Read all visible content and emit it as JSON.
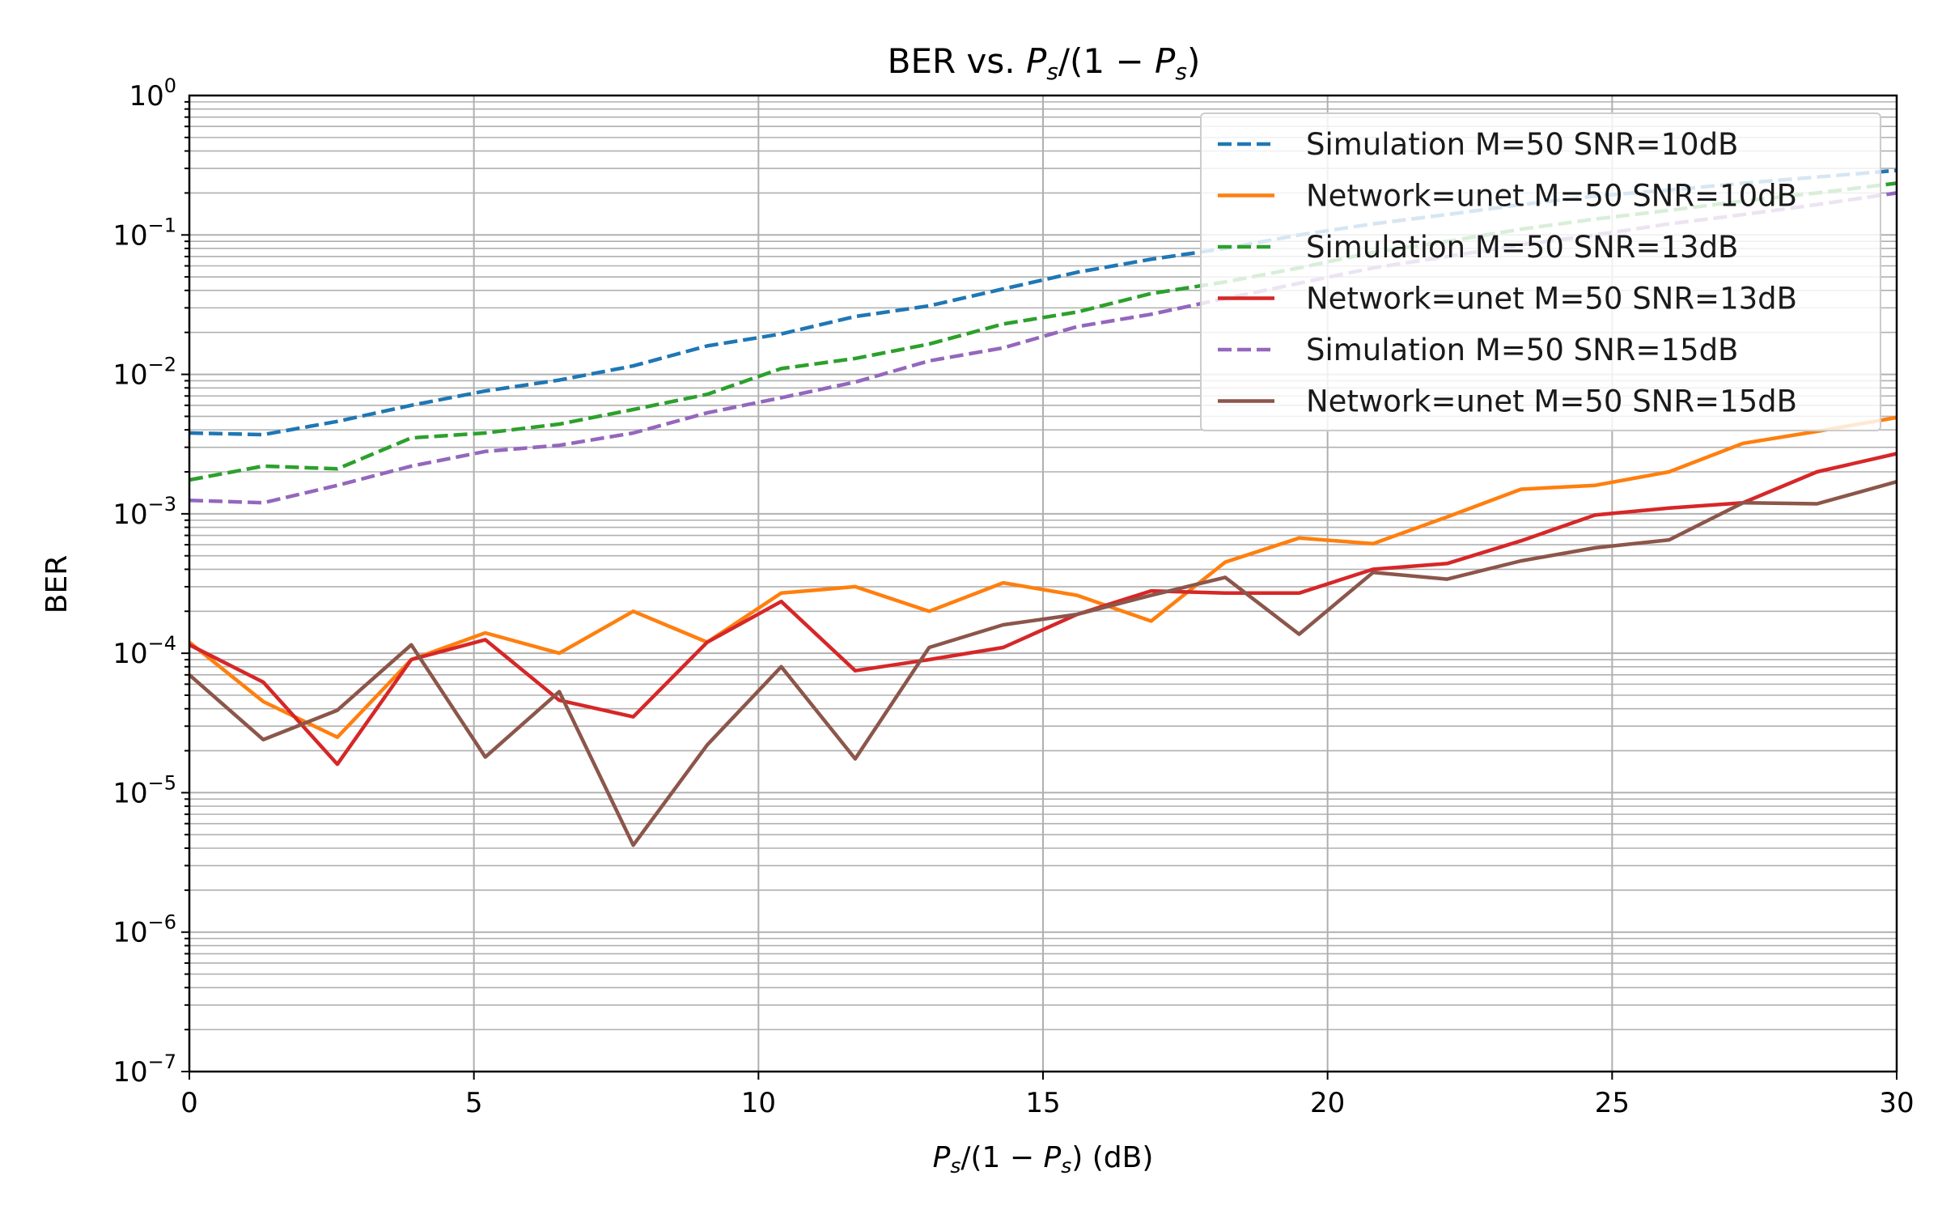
{
  "chart_data": {
    "type": "line",
    "title": {
      "main": "BER vs. ",
      "ps": "P",
      "s_sub": "s",
      "mid": "/(1 − ",
      "ps2": "P",
      "s_sub2": "s",
      "end": ")"
    },
    "xlabel": {
      "ps": "P",
      "s_sub": "s",
      "mid": "/(1 − ",
      "ps2": "P",
      "s_sub2": "s",
      "end": ") (dB)"
    },
    "ylabel": "BER",
    "xlim": [
      0,
      30
    ],
    "ylim": [
      1e-07,
      1
    ],
    "yscale": "log",
    "grid": "on (major and minor)",
    "legend_position": "top-right",
    "x_ticks": [
      "0",
      "5",
      "10",
      "15",
      "20",
      "25",
      "30"
    ],
    "y_ticks": [
      {
        "base": "10",
        "exp": "−7",
        "value": 1e-07
      },
      {
        "base": "10",
        "exp": "−6",
        "value": 1e-06
      },
      {
        "base": "10",
        "exp": "−5",
        "value": 1e-05
      },
      {
        "base": "10",
        "exp": "−4",
        "value": 0.0001
      },
      {
        "base": "10",
        "exp": "−3",
        "value": 0.001
      },
      {
        "base": "10",
        "exp": "−2",
        "value": 0.01
      },
      {
        "base": "10",
        "exp": "−1",
        "value": 0.1
      },
      {
        "base": "10",
        "exp": "0",
        "value": 1
      }
    ],
    "x": [
      0,
      1.3,
      2.6,
      3.9,
      5.2,
      6.5,
      7.8,
      9.1,
      10.4,
      11.7,
      13.0,
      14.3,
      15.6,
      16.9,
      18.2,
      19.5,
      20.8,
      22.1,
      23.4,
      24.7,
      26.0,
      27.3,
      28.6,
      30.0
    ],
    "series": [
      {
        "name": "Simulation M=50 SNR=10dB",
        "color": "#1f77b4",
        "dash": true,
        "values": [
          0.0038,
          0.0037,
          0.0046,
          0.006,
          0.0076,
          0.0091,
          0.0115,
          0.016,
          0.0195,
          0.026,
          0.031,
          0.041,
          0.054,
          0.067,
          0.08,
          0.1,
          0.12,
          0.14,
          0.165,
          0.19,
          0.21,
          0.235,
          0.26,
          0.29
        ]
      },
      {
        "name": "Network=unet M=50 SNR=10dB",
        "color": "#ff7f0e",
        "dash": false,
        "values": [
          0.00012,
          4.5e-05,
          2.5e-05,
          9e-05,
          0.00014,
          0.0001,
          0.0002,
          0.00012,
          0.00027,
          0.0003,
          0.0002,
          0.00032,
          0.00026,
          0.00017,
          0.00045,
          0.00067,
          0.00061,
          0.00095,
          0.0015,
          0.0016,
          0.002,
          0.0032,
          0.0039,
          0.0049
        ]
      },
      {
        "name": "Simulation M=50 SNR=13dB",
        "color": "#2ca02c",
        "dash": true,
        "values": [
          0.00175,
          0.0022,
          0.0021,
          0.0035,
          0.0038,
          0.0044,
          0.0056,
          0.0072,
          0.011,
          0.013,
          0.0165,
          0.023,
          0.028,
          0.038,
          0.046,
          0.058,
          0.075,
          0.09,
          0.11,
          0.13,
          0.15,
          0.175,
          0.2,
          0.235
        ]
      },
      {
        "name": "Network=unet M=50 SNR=13dB",
        "color": "#d62728",
        "dash": false,
        "values": [
          0.000115,
          6.2e-05,
          1.6e-05,
          9e-05,
          0.000125,
          4.6e-05,
          3.5e-05,
          0.00012,
          0.000235,
          7.5e-05,
          9e-05,
          0.00011,
          0.00019,
          0.00028,
          0.00027,
          0.00027,
          0.0004,
          0.00044,
          0.00064,
          0.00098,
          0.0011,
          0.0012,
          0.002,
          0.0027
        ]
      },
      {
        "name": "Simulation M=50 SNR=15dB",
        "color": "#9467bd",
        "dash": true,
        "values": [
          0.00125,
          0.0012,
          0.0016,
          0.0022,
          0.0028,
          0.0031,
          0.0038,
          0.0053,
          0.0068,
          0.0088,
          0.0125,
          0.0155,
          0.022,
          0.027,
          0.035,
          0.045,
          0.058,
          0.07,
          0.085,
          0.1,
          0.12,
          0.14,
          0.165,
          0.2
        ]
      },
      {
        "name": "Network=unet M=50 SNR=15dB",
        "color": "#8c564b",
        "dash": false,
        "values": [
          7e-05,
          2.4e-05,
          3.9e-05,
          0.000115,
          1.8e-05,
          5.3e-05,
          4.2e-06,
          2.2e-05,
          8e-05,
          1.75e-05,
          0.00011,
          0.00016,
          0.00019,
          0.00026,
          0.00035,
          0.000137,
          0.00038,
          0.00034,
          0.00046,
          0.00057,
          0.00065,
          0.0012,
          0.00118,
          0.0017
        ]
      }
    ]
  }
}
